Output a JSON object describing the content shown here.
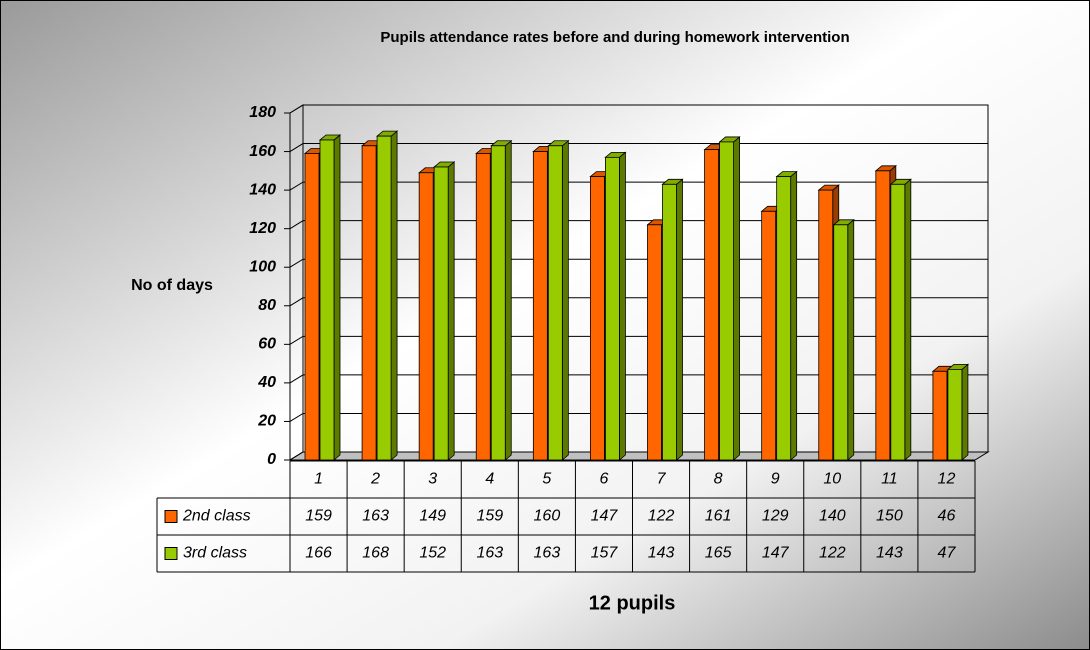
{
  "chart_data": {
    "type": "bar3d",
    "title": "Pupils attendance rates before and during homework intervention",
    "y_label": "No of days",
    "x_label": "12 pupils",
    "categories": [
      "1",
      "2",
      "3",
      "4",
      "5",
      "6",
      "7",
      "8",
      "9",
      "10",
      "11",
      "12"
    ],
    "series": [
      {
        "name": "2nd class",
        "color": "#ff6600",
        "values": [
          159,
          163,
          149,
          159,
          160,
          147,
          122,
          161,
          129,
          140,
          150,
          46
        ]
      },
      {
        "name": "3rd class",
        "color": "#99cc00",
        "values": [
          166,
          168,
          152,
          163,
          163,
          157,
          143,
          165,
          147,
          122,
          143,
          47
        ]
      }
    ],
    "ylim": [
      0,
      180
    ],
    "yticks": [
      0,
      20,
      40,
      60,
      80,
      100,
      120,
      140,
      160,
      180
    ],
    "grid": true,
    "data_table": true
  }
}
